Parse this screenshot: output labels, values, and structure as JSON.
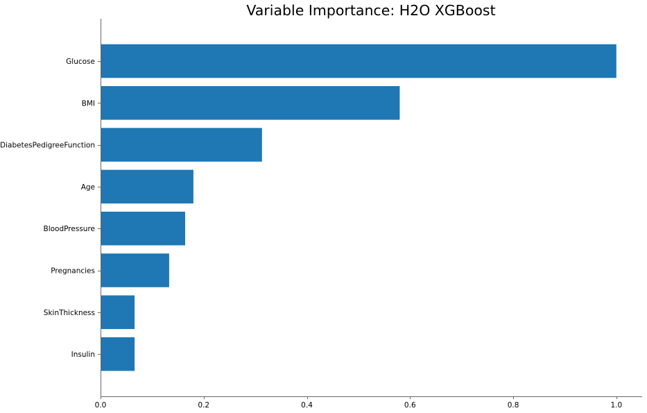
{
  "chart_data": {
    "type": "bar",
    "orientation": "horizontal",
    "title": "Variable Importance: H2O XGBoost",
    "xlabel": "",
    "ylabel": "",
    "categories": [
      "Glucose",
      "BMI",
      "DiabetesPedigreeFunction",
      "Age",
      "BloodPressure",
      "Pregnancies",
      "SkinThickness",
      "Insulin"
    ],
    "values": [
      1.0,
      0.58,
      0.313,
      0.18,
      0.164,
      0.133,
      0.066,
      0.066
    ],
    "xlim": [
      0,
      1.05
    ],
    "xticks": [
      0.0,
      0.2,
      0.4,
      0.6,
      0.8,
      1.0
    ],
    "xtick_labels": [
      "0.0",
      "0.2",
      "0.4",
      "0.6",
      "0.8",
      "1.0"
    ],
    "grid": false,
    "bar_color": "#1f77b4"
  }
}
